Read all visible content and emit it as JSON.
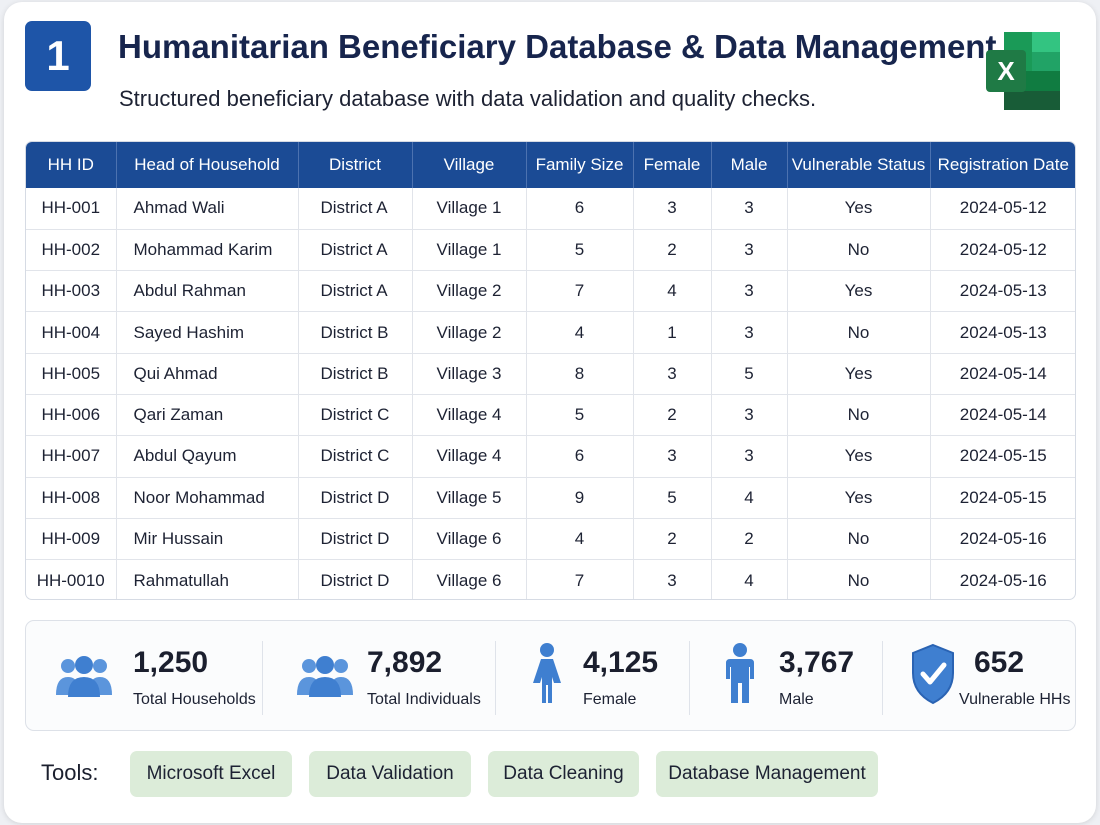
{
  "header": {
    "number": "1",
    "title": "Humanitarian Beneficiary Database & Data Management",
    "subtitle": "Structured beneficiary database with data validation and quality checks.",
    "app_icon": "excel-icon",
    "app_icon_letter": "X"
  },
  "table": {
    "columns": [
      "HH ID",
      "Head of Household",
      "District",
      "Village",
      "Family Size",
      "Female",
      "Male",
      "Vulnerable Status",
      "Registration Date"
    ],
    "rows": [
      [
        "HH-001",
        "Ahmad Wali",
        "District A",
        "Village 1",
        "6",
        "3",
        "3",
        "Yes",
        "2024-05-12"
      ],
      [
        "HH-002",
        "Mohammad Karim",
        "District A",
        "Village 1",
        "5",
        "2",
        "3",
        "No",
        "2024-05-12"
      ],
      [
        "HH-003",
        "Abdul Rahman",
        "District A",
        "Village 2",
        "7",
        "4",
        "3",
        "Yes",
        "2024-05-13"
      ],
      [
        "HH-004",
        "Sayed Hashim",
        "District B",
        "Village 2",
        "4",
        "1",
        "3",
        "No",
        "2024-05-13"
      ],
      [
        "HH-005",
        "Qui Ahmad",
        "District B",
        "Village 3",
        "8",
        "3",
        "5",
        "Yes",
        "2024-05-14"
      ],
      [
        "HH-006",
        "Qari Zaman",
        "District C",
        "Village 4",
        "5",
        "2",
        "3",
        "No",
        "2024-05-14"
      ],
      [
        "HH-007",
        "Abdul Qayum",
        "District C",
        "Village 4",
        "6",
        "3",
        "3",
        "Yes",
        "2024-05-15"
      ],
      [
        "HH-008",
        "Noor Mohammad",
        "District D",
        "Village 5",
        "9",
        "5",
        "4",
        "Yes",
        "2024-05-15"
      ],
      [
        "HH-009",
        "Mir Hussain",
        "District D",
        "Village 6",
        "4",
        "2",
        "2",
        "No",
        "2024-05-16"
      ],
      [
        "HH-0010",
        "Rahmatullah",
        "District D",
        "Village 6",
        "7",
        "3",
        "4",
        "No",
        "2024-05-16"
      ]
    ]
  },
  "stats": {
    "households": {
      "value": "1,250",
      "label": "Total Households",
      "icon": "group-icon"
    },
    "individuals": {
      "value": "7,892",
      "label": "Total Individuals",
      "icon": "group-icon"
    },
    "female": {
      "value": "4,125",
      "label": "Female",
      "icon": "female-icon"
    },
    "male": {
      "value": "3,767",
      "label": "Male",
      "icon": "male-icon"
    },
    "vulnerable": {
      "value": "652",
      "label": "Vulnerable HHs",
      "icon": "shield-check-icon"
    }
  },
  "tools": {
    "label": "Tools:",
    "items": [
      "Microsoft Excel",
      "Data Validation",
      "Data Cleaning",
      "Database Management"
    ]
  },
  "colors": {
    "accent": "#1e55a8",
    "table_header": "#1b4b95",
    "icon_blue": "#3f7fd0",
    "chip_green": "#dcecd9",
    "excel_green": "#1f7a45"
  }
}
